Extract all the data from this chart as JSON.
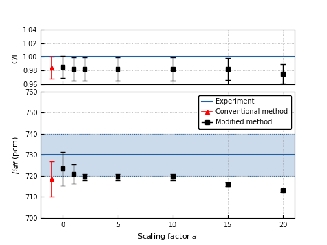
{
  "scaling_factors_conv": [
    -1
  ],
  "scaling_factors_mod": [
    0,
    1,
    2,
    5,
    10,
    15,
    20
  ],
  "beta_conv_y": [
    718.5
  ],
  "beta_conv_yerr": [
    8.5
  ],
  "beta_mod_y": [
    723.5,
    721.0,
    719.5,
    719.5,
    719.5,
    716.0,
    713.0
  ],
  "beta_mod_yerr": [
    8.0,
    4.5,
    1.5,
    1.5,
    1.5,
    1.0,
    0.5
  ],
  "beta_exp": 730.0,
  "beta_exp_upper": 740.0,
  "beta_exp_lower": 720.0,
  "ce_conv_y": [
    0.984
  ],
  "ce_conv_yerr": [
    0.016
  ],
  "ce_mod_y": [
    0.985,
    0.982,
    0.982,
    0.982,
    0.982,
    0.982,
    0.975
  ],
  "ce_mod_yerr": [
    0.016,
    0.017,
    0.017,
    0.017,
    0.017,
    0.016,
    0.014
  ],
  "ce_line": 1.0,
  "xlim": [
    -2,
    21
  ],
  "beta_ylim": [
    700,
    760
  ],
  "ce_ylim": [
    0.96,
    1.04
  ],
  "beta_yticks": [
    700,
    710,
    720,
    730,
    740,
    750,
    760
  ],
  "ce_yticks": [
    0.96,
    0.98,
    1.0,
    1.02,
    1.04
  ],
  "xticks": [
    0,
    5,
    10,
    15,
    20
  ],
  "xlabel": "Scaling factor $a$",
  "ylabel_beta": "$\\beta_{eff}$ (pcm)",
  "ylabel_ce": "C/E",
  "exp_band_color": "#aac4de",
  "exp_band_alpha": 0.6,
  "exp_line_color": "#2060a0",
  "conv_color": "red",
  "mod_color": "black",
  "grid_color": "#999999",
  "legend_labels": [
    "Experiment",
    "Conventional method",
    "Modified method"
  ]
}
